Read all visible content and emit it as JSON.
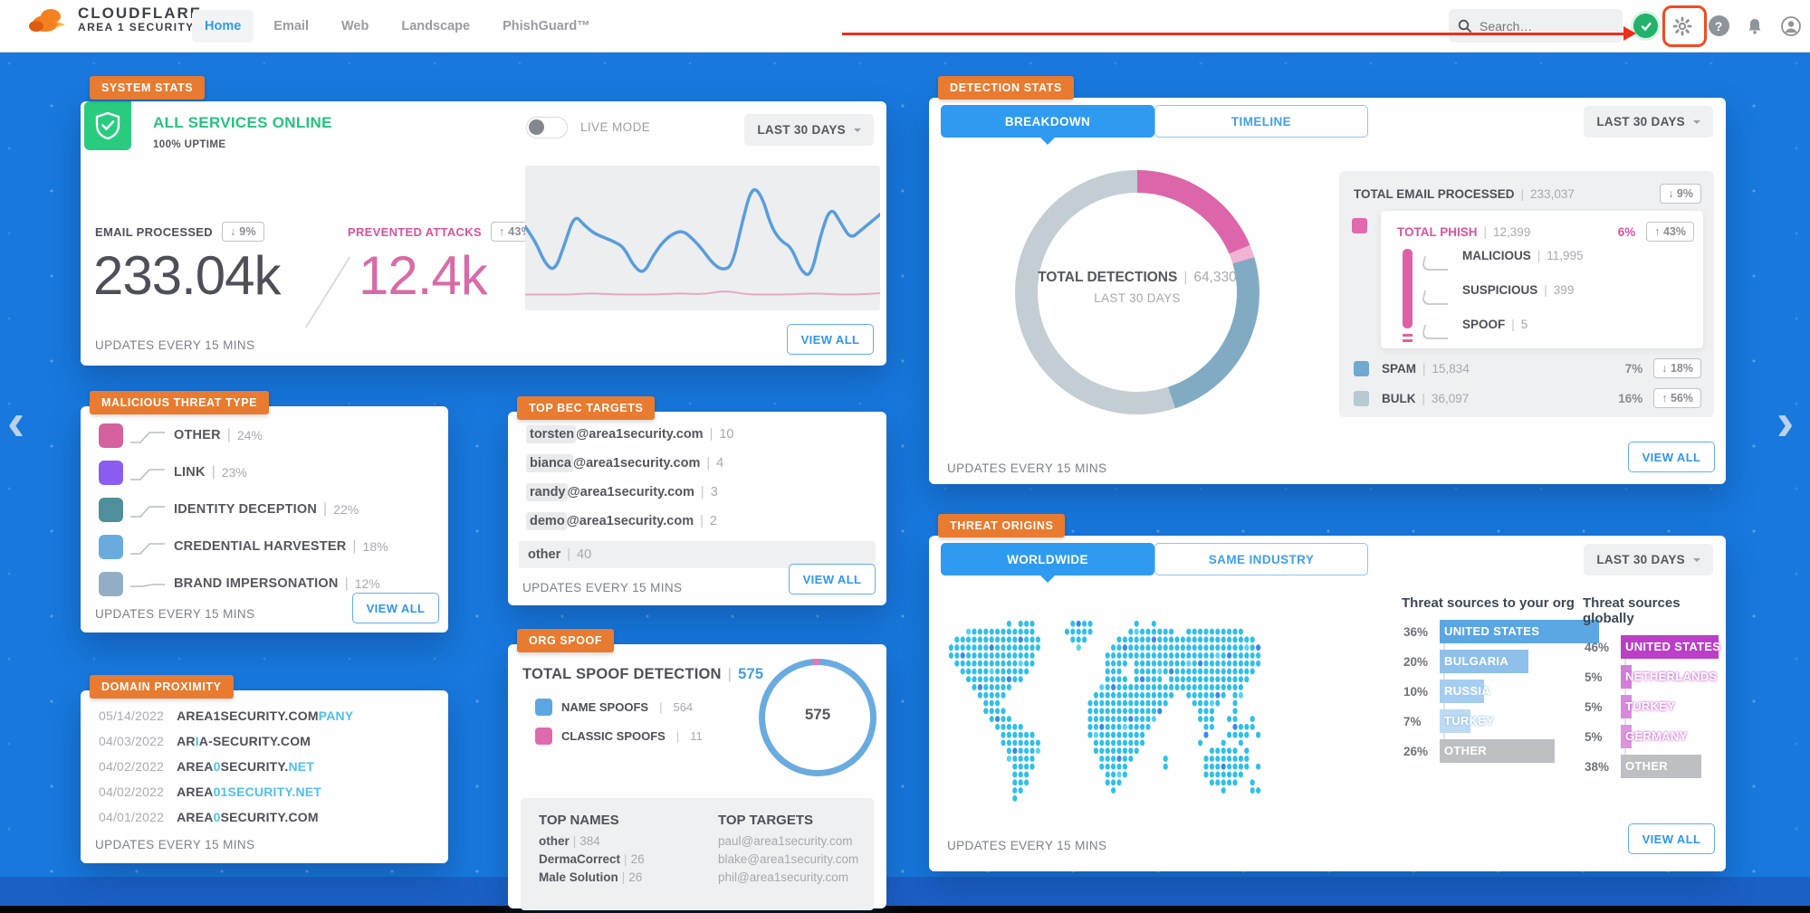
{
  "topbar": {
    "brand_line1": "CLOUDFLARE",
    "brand_line2": "AREA 1 SECURITY",
    "nav": [
      {
        "label": "Home",
        "active": true
      },
      {
        "label": "Email",
        "active": false
      },
      {
        "label": "Web",
        "active": false
      },
      {
        "label": "Landscape",
        "active": false
      },
      {
        "label": "PhishGuard™",
        "active": false
      }
    ],
    "search_placeholder": "Search…"
  },
  "pager": {
    "prev": "‹",
    "next": "›"
  },
  "cards": {
    "system_stats": {
      "badge": "SYSTEM STATS",
      "status": "ALL SERVICES ONLINE",
      "uptime": "100% UPTIME",
      "live_mode_label": "LIVE MODE",
      "range_label": "LAST 30 DAYS",
      "email_processed_label": "EMAIL PROCESSED",
      "email_processed_delta": "↓ 9%",
      "email_processed_value": "233.04k",
      "prevented_label": "PREVENTED ATTACKS",
      "prevented_delta": "↑ 43%",
      "prevented_value": "12.4k",
      "updates": "UPDATES EVERY 15 MINS",
      "view_all": "VIEW ALL",
      "sparkline": {
        "blue": [
          45,
          55,
          72,
          78,
          58,
          36,
          44,
          50,
          53,
          56,
          60,
          74,
          80,
          66,
          56,
          50,
          48,
          54,
          62,
          72,
          77,
          74,
          42,
          15,
          22,
          46,
          56,
          60,
          78,
          82,
          50,
          30,
          42,
          54,
          48,
          42,
          36
        ],
        "pink": [
          95,
          95,
          95,
          94,
          95,
          95,
          95,
          94,
          95,
          92,
          95,
          95,
          95,
          94,
          95,
          95,
          94
        ]
      }
    },
    "malicious_threat_type": {
      "badge": "MALICIOUS THREAT TYPE",
      "rows": [
        {
          "label": "OTHER",
          "pct": "24%",
          "color": "#d5619e"
        },
        {
          "label": "LINK",
          "pct": "23%",
          "color": "#8b5cf0"
        },
        {
          "label": "IDENTITY DECEPTION",
          "pct": "22%",
          "color": "#4f8f9b"
        },
        {
          "label": "CREDENTIAL HARVESTER",
          "pct": "18%",
          "color": "#6aabdd"
        },
        {
          "label": "BRAND IMPERSONATION",
          "pct": "12%",
          "color": "#93aec4"
        }
      ],
      "updates": "UPDATES EVERY 15 MINS",
      "view_all": "VIEW ALL"
    },
    "domain_proximity": {
      "badge": "DOMAIN PROXIMITY",
      "rows": [
        {
          "date": "05/14/2022",
          "p1": "AREA1SECURITY.COM",
          "p2": "PANY",
          "p3": "",
          "p4": ""
        },
        {
          "date": "04/03/2022",
          "p1": "AR",
          "p2": "I",
          "p3": "A-SECURITY.COM",
          "p4": ""
        },
        {
          "date": "04/02/2022",
          "p1": "AREA",
          "p2": "0",
          "p3": "SECURITY.",
          "p4": "NET"
        },
        {
          "date": "04/02/2022",
          "p1": "AREA",
          "p2": "01SECURITY.NET",
          "p3": "",
          "p4": ""
        },
        {
          "date": "04/01/2022",
          "p1": "AREA",
          "p2": "0",
          "p3": "SECURITY.COM",
          "p4": ""
        }
      ],
      "updates": "UPDATES EVERY 15 MINS"
    },
    "top_bec_targets": {
      "badge": "TOP BEC TARGETS",
      "rows": [
        {
          "hl": "torsten",
          "rest": "@area1security.com",
          "count": "10"
        },
        {
          "hl": "bianca",
          "rest": "@area1security.com",
          "count": "4"
        },
        {
          "hl": "randy",
          "rest": "@area1security.com",
          "count": "3"
        },
        {
          "hl": "demo",
          "rest": "@area1security.com",
          "count": "2"
        }
      ],
      "other_row": {
        "label": "other",
        "count": "40"
      },
      "updates": "UPDATES EVERY 15 MINS",
      "view_all": "VIEW ALL"
    },
    "org_spoof": {
      "badge": "ORG SPOOF",
      "title": "TOTAL SPOOF DETECTION",
      "total": "575",
      "legend": [
        {
          "label": "NAME SPOOFS",
          "value": "564",
          "color": "#5ba7e3"
        },
        {
          "label": "CLASSIC SPOOFS",
          "value": "11",
          "color": "#e06aae"
        }
      ],
      "donut_center": "575",
      "donut_segments": [
        {
          "value": 11,
          "color": "#e877b5"
        },
        {
          "value": 564,
          "color": "#6aabdf"
        }
      ],
      "top_names_title": "TOP NAMES",
      "top_names": [
        {
          "name": "other",
          "value": "384"
        },
        {
          "name": "DermaCorrect",
          "value": "26"
        },
        {
          "name": "Male Solution",
          "value": "26"
        }
      ],
      "top_targets_title": "TOP TARGETS",
      "top_targets": [
        "paul@area1security.com",
        "blake@area1security.com",
        "phil@area1security.com"
      ]
    },
    "detection_stats": {
      "badge": "DETECTION STATS",
      "tabs": [
        "BREAKDOWN",
        "TIMELINE"
      ],
      "range_label": "LAST 30 DAYS",
      "donut": {
        "center_label": "TOTAL DETECTIONS",
        "center_value": "64,330",
        "center_sub": "LAST 30 DAYS",
        "segments": [
          {
            "value": 12000,
            "color": "#dd66ab"
          },
          {
            "value": 1100,
            "color": "#f0b3d4"
          },
          {
            "value": 15834,
            "color": "#81abc3"
          },
          {
            "value": 35396,
            "color": "#c3ced4"
          }
        ]
      },
      "total_email": {
        "label": "TOTAL EMAIL PROCESSED",
        "value": "233,037",
        "delta": "↓ 9%"
      },
      "phish": {
        "label": "TOTAL PHISH",
        "value": "12,399",
        "pct": "6%",
        "delta": "↑ 43%",
        "children": [
          {
            "label": "MALICIOUS",
            "value": "11,995"
          },
          {
            "label": "SUSPICIOUS",
            "value": "399"
          },
          {
            "label": "SPOOF",
            "value": "5"
          }
        ]
      },
      "spam": {
        "label": "SPAM",
        "value": "15,834",
        "pct": "7%",
        "delta": "↓ 18%",
        "color": "#6fa9cf"
      },
      "bulk": {
        "label": "BULK",
        "value": "36,097",
        "pct": "16%",
        "delta": "↑ 56%",
        "color": "#b7c9d1"
      },
      "updates": "UPDATES EVERY 15 MINS",
      "view_all": "VIEW ALL"
    },
    "threat_origins": {
      "badge": "THREAT ORIGINS",
      "tabs": [
        "WORLDWIDE",
        "SAME INDUSTRY"
      ],
      "range_label": "LAST 30 DAYS",
      "org_title": "Threat sources to your org",
      "org_rows": [
        {
          "pct": "36%",
          "label": "UNITED STATES"
        },
        {
          "pct": "20%",
          "label": "BULGARIA"
        },
        {
          "pct": "10%",
          "label": "RUSSIA"
        },
        {
          "pct": "7%",
          "label": "TURKEY"
        },
        {
          "pct": "26%",
          "label": "OTHER"
        }
      ],
      "global_title": "Threat sources globally",
      "global_rows": [
        {
          "pct": "46%",
          "label": "UNITED STATES"
        },
        {
          "pct": "5%",
          "label": "NETHERLANDS"
        },
        {
          "pct": "5%",
          "label": "TURKEY"
        },
        {
          "pct": "5%",
          "label": "GERMANY"
        },
        {
          "pct": "38%",
          "label": "OTHER"
        }
      ],
      "updates": "UPDATES EVERY 15 MINS",
      "view_all": "VIEW ALL"
    }
  }
}
